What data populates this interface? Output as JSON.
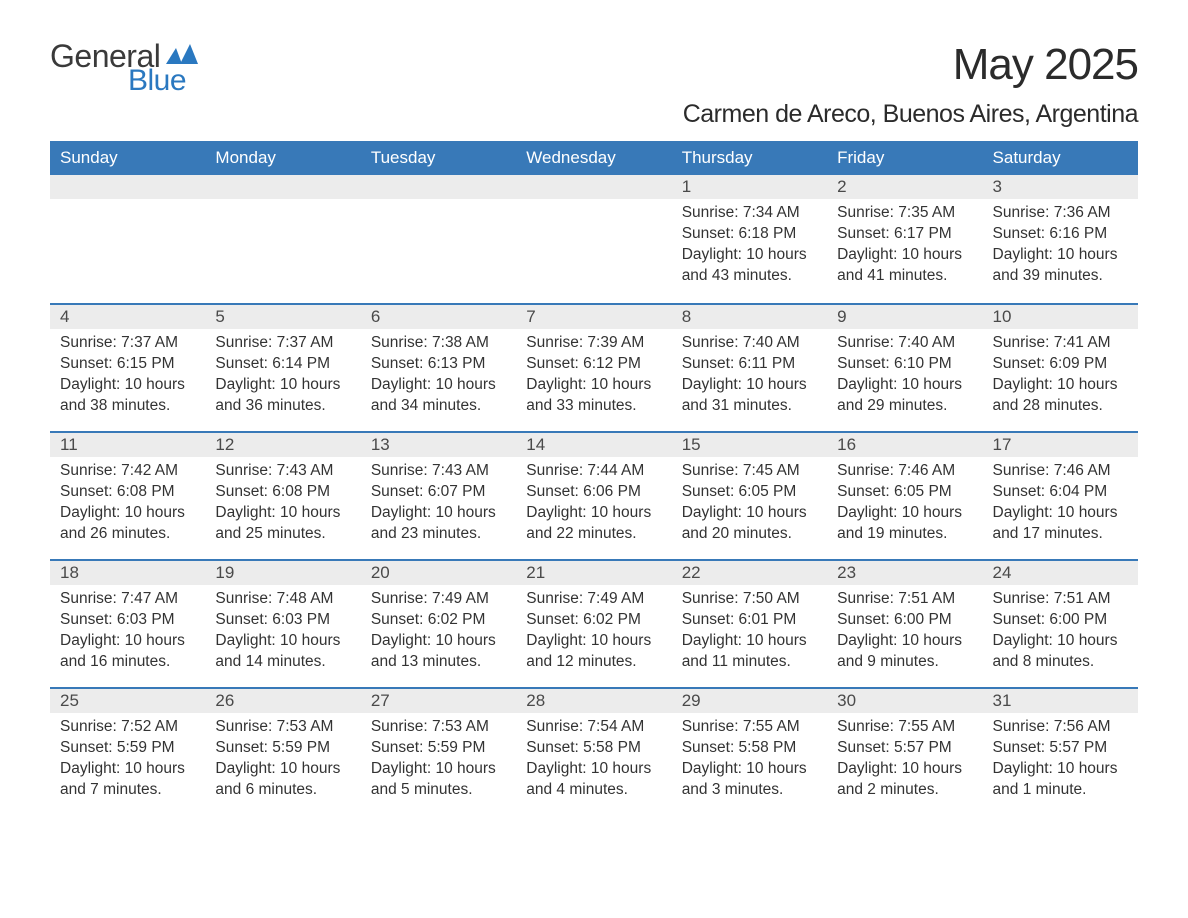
{
  "logo": {
    "text_general": "General",
    "text_blue": "Blue"
  },
  "title": "May 2025",
  "location": "Carmen de Areco, Buenos Aires, Argentina",
  "colors": {
    "header_bg": "#3879b8",
    "header_text": "#ffffff",
    "daynum_bg": "#ececec",
    "daynum_text": "#4a4a4a",
    "body_text": "#333333",
    "accent_line": "#3879b8",
    "logo_blue": "#2a78c0",
    "page_bg": "#ffffff"
  },
  "typography": {
    "title_fontsize": 44,
    "location_fontsize": 25,
    "weekday_fontsize": 17,
    "daynum_fontsize": 17,
    "body_fontsize": 15.5,
    "font_family": "Arial"
  },
  "weekdays": [
    "Sunday",
    "Monday",
    "Tuesday",
    "Wednesday",
    "Thursday",
    "Friday",
    "Saturday"
  ],
  "weeks": [
    [
      {
        "day": "",
        "sunrise": "",
        "sunset": "",
        "daylight": ""
      },
      {
        "day": "",
        "sunrise": "",
        "sunset": "",
        "daylight": ""
      },
      {
        "day": "",
        "sunrise": "",
        "sunset": "",
        "daylight": ""
      },
      {
        "day": "",
        "sunrise": "",
        "sunset": "",
        "daylight": ""
      },
      {
        "day": "1",
        "sunrise": "Sunrise: 7:34 AM",
        "sunset": "Sunset: 6:18 PM",
        "daylight": "Daylight: 10 hours and 43 minutes."
      },
      {
        "day": "2",
        "sunrise": "Sunrise: 7:35 AM",
        "sunset": "Sunset: 6:17 PM",
        "daylight": "Daylight: 10 hours and 41 minutes."
      },
      {
        "day": "3",
        "sunrise": "Sunrise: 7:36 AM",
        "sunset": "Sunset: 6:16 PM",
        "daylight": "Daylight: 10 hours and 39 minutes."
      }
    ],
    [
      {
        "day": "4",
        "sunrise": "Sunrise: 7:37 AM",
        "sunset": "Sunset: 6:15 PM",
        "daylight": "Daylight: 10 hours and 38 minutes."
      },
      {
        "day": "5",
        "sunrise": "Sunrise: 7:37 AM",
        "sunset": "Sunset: 6:14 PM",
        "daylight": "Daylight: 10 hours and 36 minutes."
      },
      {
        "day": "6",
        "sunrise": "Sunrise: 7:38 AM",
        "sunset": "Sunset: 6:13 PM",
        "daylight": "Daylight: 10 hours and 34 minutes."
      },
      {
        "day": "7",
        "sunrise": "Sunrise: 7:39 AM",
        "sunset": "Sunset: 6:12 PM",
        "daylight": "Daylight: 10 hours and 33 minutes."
      },
      {
        "day": "8",
        "sunrise": "Sunrise: 7:40 AM",
        "sunset": "Sunset: 6:11 PM",
        "daylight": "Daylight: 10 hours and 31 minutes."
      },
      {
        "day": "9",
        "sunrise": "Sunrise: 7:40 AM",
        "sunset": "Sunset: 6:10 PM",
        "daylight": "Daylight: 10 hours and 29 minutes."
      },
      {
        "day": "10",
        "sunrise": "Sunrise: 7:41 AM",
        "sunset": "Sunset: 6:09 PM",
        "daylight": "Daylight: 10 hours and 28 minutes."
      }
    ],
    [
      {
        "day": "11",
        "sunrise": "Sunrise: 7:42 AM",
        "sunset": "Sunset: 6:08 PM",
        "daylight": "Daylight: 10 hours and 26 minutes."
      },
      {
        "day": "12",
        "sunrise": "Sunrise: 7:43 AM",
        "sunset": "Sunset: 6:08 PM",
        "daylight": "Daylight: 10 hours and 25 minutes."
      },
      {
        "day": "13",
        "sunrise": "Sunrise: 7:43 AM",
        "sunset": "Sunset: 6:07 PM",
        "daylight": "Daylight: 10 hours and 23 minutes."
      },
      {
        "day": "14",
        "sunrise": "Sunrise: 7:44 AM",
        "sunset": "Sunset: 6:06 PM",
        "daylight": "Daylight: 10 hours and 22 minutes."
      },
      {
        "day": "15",
        "sunrise": "Sunrise: 7:45 AM",
        "sunset": "Sunset: 6:05 PM",
        "daylight": "Daylight: 10 hours and 20 minutes."
      },
      {
        "day": "16",
        "sunrise": "Sunrise: 7:46 AM",
        "sunset": "Sunset: 6:05 PM",
        "daylight": "Daylight: 10 hours and 19 minutes."
      },
      {
        "day": "17",
        "sunrise": "Sunrise: 7:46 AM",
        "sunset": "Sunset: 6:04 PM",
        "daylight": "Daylight: 10 hours and 17 minutes."
      }
    ],
    [
      {
        "day": "18",
        "sunrise": "Sunrise: 7:47 AM",
        "sunset": "Sunset: 6:03 PM",
        "daylight": "Daylight: 10 hours and 16 minutes."
      },
      {
        "day": "19",
        "sunrise": "Sunrise: 7:48 AM",
        "sunset": "Sunset: 6:03 PM",
        "daylight": "Daylight: 10 hours and 14 minutes."
      },
      {
        "day": "20",
        "sunrise": "Sunrise: 7:49 AM",
        "sunset": "Sunset: 6:02 PM",
        "daylight": "Daylight: 10 hours and 13 minutes."
      },
      {
        "day": "21",
        "sunrise": "Sunrise: 7:49 AM",
        "sunset": "Sunset: 6:02 PM",
        "daylight": "Daylight: 10 hours and 12 minutes."
      },
      {
        "day": "22",
        "sunrise": "Sunrise: 7:50 AM",
        "sunset": "Sunset: 6:01 PM",
        "daylight": "Daylight: 10 hours and 11 minutes."
      },
      {
        "day": "23",
        "sunrise": "Sunrise: 7:51 AM",
        "sunset": "Sunset: 6:00 PM",
        "daylight": "Daylight: 10 hours and 9 minutes."
      },
      {
        "day": "24",
        "sunrise": "Sunrise: 7:51 AM",
        "sunset": "Sunset: 6:00 PM",
        "daylight": "Daylight: 10 hours and 8 minutes."
      }
    ],
    [
      {
        "day": "25",
        "sunrise": "Sunrise: 7:52 AM",
        "sunset": "Sunset: 5:59 PM",
        "daylight": "Daylight: 10 hours and 7 minutes."
      },
      {
        "day": "26",
        "sunrise": "Sunrise: 7:53 AM",
        "sunset": "Sunset: 5:59 PM",
        "daylight": "Daylight: 10 hours and 6 minutes."
      },
      {
        "day": "27",
        "sunrise": "Sunrise: 7:53 AM",
        "sunset": "Sunset: 5:59 PM",
        "daylight": "Daylight: 10 hours and 5 minutes."
      },
      {
        "day": "28",
        "sunrise": "Sunrise: 7:54 AM",
        "sunset": "Sunset: 5:58 PM",
        "daylight": "Daylight: 10 hours and 4 minutes."
      },
      {
        "day": "29",
        "sunrise": "Sunrise: 7:55 AM",
        "sunset": "Sunset: 5:58 PM",
        "daylight": "Daylight: 10 hours and 3 minutes."
      },
      {
        "day": "30",
        "sunrise": "Sunrise: 7:55 AM",
        "sunset": "Sunset: 5:57 PM",
        "daylight": "Daylight: 10 hours and 2 minutes."
      },
      {
        "day": "31",
        "sunrise": "Sunrise: 7:56 AM",
        "sunset": "Sunset: 5:57 PM",
        "daylight": "Daylight: 10 hours and 1 minute."
      }
    ]
  ]
}
